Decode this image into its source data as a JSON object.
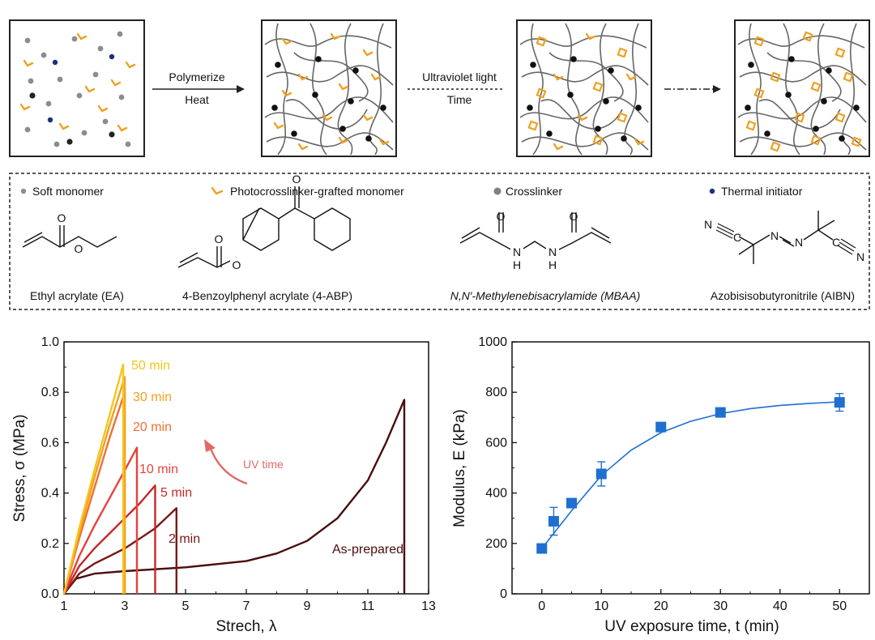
{
  "schematic": {
    "step1": {
      "label_top": "Polymerize",
      "label_bottom": "Heat"
    },
    "step2": {
      "label_top": "Ultraviolet light",
      "label_bottom": "Time"
    }
  },
  "legend": {
    "items": [
      {
        "label": "Soft monomer",
        "color": "#8c8c8c"
      },
      {
        "label": "Photocrosslinker-grafted monomer",
        "color": "#f0a020"
      },
      {
        "label": "Crosslinker",
        "color": "#808080"
      },
      {
        "label": "Thermal initiator",
        "color": "#1f2f7a"
      }
    ],
    "chemicals": [
      {
        "name": "Ethyl acrylate (EA)"
      },
      {
        "name": "4-Benzoylphenyl acrylate (4-ABP)"
      },
      {
        "name": "N,N′-Methylenebisacrylamide (MBAA)"
      },
      {
        "name": "Azobisisobutyronitrile (AIBN)"
      }
    ],
    "atoms": {
      "O": "O",
      "N": "N",
      "H": "H",
      "C": "C"
    }
  },
  "chart_data": [
    {
      "type": "line",
      "title": "",
      "xlabel": "Strech, λ",
      "ylabel": "Stress, σ (MPa)",
      "xlim": [
        1,
        13
      ],
      "ylim": [
        0,
        1.0
      ],
      "xticks": [
        "1",
        "3",
        "5",
        "7",
        "9",
        "11",
        "13"
      ],
      "yticks": [
        "0.0",
        "0.2",
        "0.4",
        "0.6",
        "0.8",
        "1.0"
      ],
      "annotation": "UV time",
      "series": [
        {
          "name": "As-prepared",
          "color": "#4a0c0c",
          "break_stretch": 12.2,
          "break_stress": 0.77,
          "points": [
            [
              1,
              0
            ],
            [
              1.4,
              0.06
            ],
            [
              2,
              0.08
            ],
            [
              3,
              0.09
            ],
            [
              5,
              0.105
            ],
            [
              7,
              0.13
            ],
            [
              8,
              0.16
            ],
            [
              9,
              0.21
            ],
            [
              10,
              0.3
            ],
            [
              11,
              0.45
            ],
            [
              11.6,
              0.6
            ],
            [
              12.2,
              0.77
            ]
          ]
        },
        {
          "name": "2 min",
          "color": "#7a1818",
          "break_stretch": 4.7,
          "break_stress": 0.34,
          "points": [
            [
              1,
              0
            ],
            [
              1.5,
              0.08
            ],
            [
              2,
              0.12
            ],
            [
              2.5,
              0.15
            ],
            [
              3,
              0.18
            ],
            [
              3.5,
              0.22
            ],
            [
              4,
              0.26
            ],
            [
              4.7,
              0.34
            ]
          ]
        },
        {
          "name": "5 min",
          "color": "#c62828",
          "break_stretch": 4.0,
          "break_stress": 0.43,
          "points": [
            [
              1,
              0
            ],
            [
              1.5,
              0.11
            ],
            [
              2,
              0.18
            ],
            [
              2.5,
              0.24
            ],
            [
              3,
              0.3
            ],
            [
              3.5,
              0.36
            ],
            [
              4,
              0.43
            ]
          ]
        },
        {
          "name": "10 min",
          "color": "#e8413a",
          "break_stretch": 3.4,
          "break_stress": 0.58,
          "points": [
            [
              1,
              0
            ],
            [
              1.5,
              0.15
            ],
            [
              2,
              0.27
            ],
            [
              2.5,
              0.38
            ],
            [
              3,
              0.49
            ],
            [
              3.4,
              0.58
            ]
          ]
        },
        {
          "name": "20 min",
          "color": "#f07030",
          "break_stretch": 3.0,
          "break_stress": 0.8,
          "points": [
            [
              1,
              0
            ],
            [
              1.5,
              0.22
            ],
            [
              2,
              0.42
            ],
            [
              2.5,
              0.62
            ],
            [
              3,
              0.8
            ]
          ]
        },
        {
          "name": "30 min",
          "color": "#f5a020",
          "break_stretch": 3.0,
          "break_stress": 0.86,
          "points": [
            [
              1,
              0
            ],
            [
              1.5,
              0.24
            ],
            [
              2,
              0.46
            ],
            [
              2.5,
              0.67
            ],
            [
              3,
              0.86
            ]
          ]
        },
        {
          "name": "50 min",
          "color": "#f5c518",
          "break_stretch": 2.95,
          "break_stress": 0.91,
          "points": [
            [
              1,
              0
            ],
            [
              1.5,
              0.26
            ],
            [
              2,
              0.49
            ],
            [
              2.5,
              0.71
            ],
            [
              2.95,
              0.91
            ]
          ]
        }
      ],
      "labels": [
        "50 min",
        "30 min",
        "20 min",
        "10 min",
        "5 min",
        "2 min",
        "As-prepared"
      ]
    },
    {
      "type": "scatter",
      "title": "",
      "xlabel": "UV exposure time, t (min)",
      "ylabel": "Modulus, E (kPa)",
      "xlim": [
        -5,
        55
      ],
      "ylim": [
        0,
        1000
      ],
      "xticks": [
        "0",
        "10",
        "20",
        "30",
        "40",
        "50"
      ],
      "yticks": [
        "0",
        "200",
        "400",
        "600",
        "800",
        "1000"
      ],
      "color": "#1f6fd0",
      "points": [
        {
          "x": 0,
          "y": 180,
          "err": 8
        },
        {
          "x": 2,
          "y": 288,
          "err": 55
        },
        {
          "x": 5,
          "y": 360,
          "err": 12
        },
        {
          "x": 10,
          "y": 476,
          "err": 48
        },
        {
          "x": 20,
          "y": 662,
          "err": 18
        },
        {
          "x": 30,
          "y": 720,
          "err": 12
        },
        {
          "x": 50,
          "y": 760,
          "err": 35
        }
      ],
      "fit": [
        [
          0,
          180
        ],
        [
          5,
          330
        ],
        [
          10,
          470
        ],
        [
          15,
          570
        ],
        [
          20,
          640
        ],
        [
          25,
          685
        ],
        [
          30,
          715
        ],
        [
          35,
          735
        ],
        [
          40,
          748
        ],
        [
          45,
          756
        ],
        [
          50,
          762
        ]
      ]
    }
  ]
}
